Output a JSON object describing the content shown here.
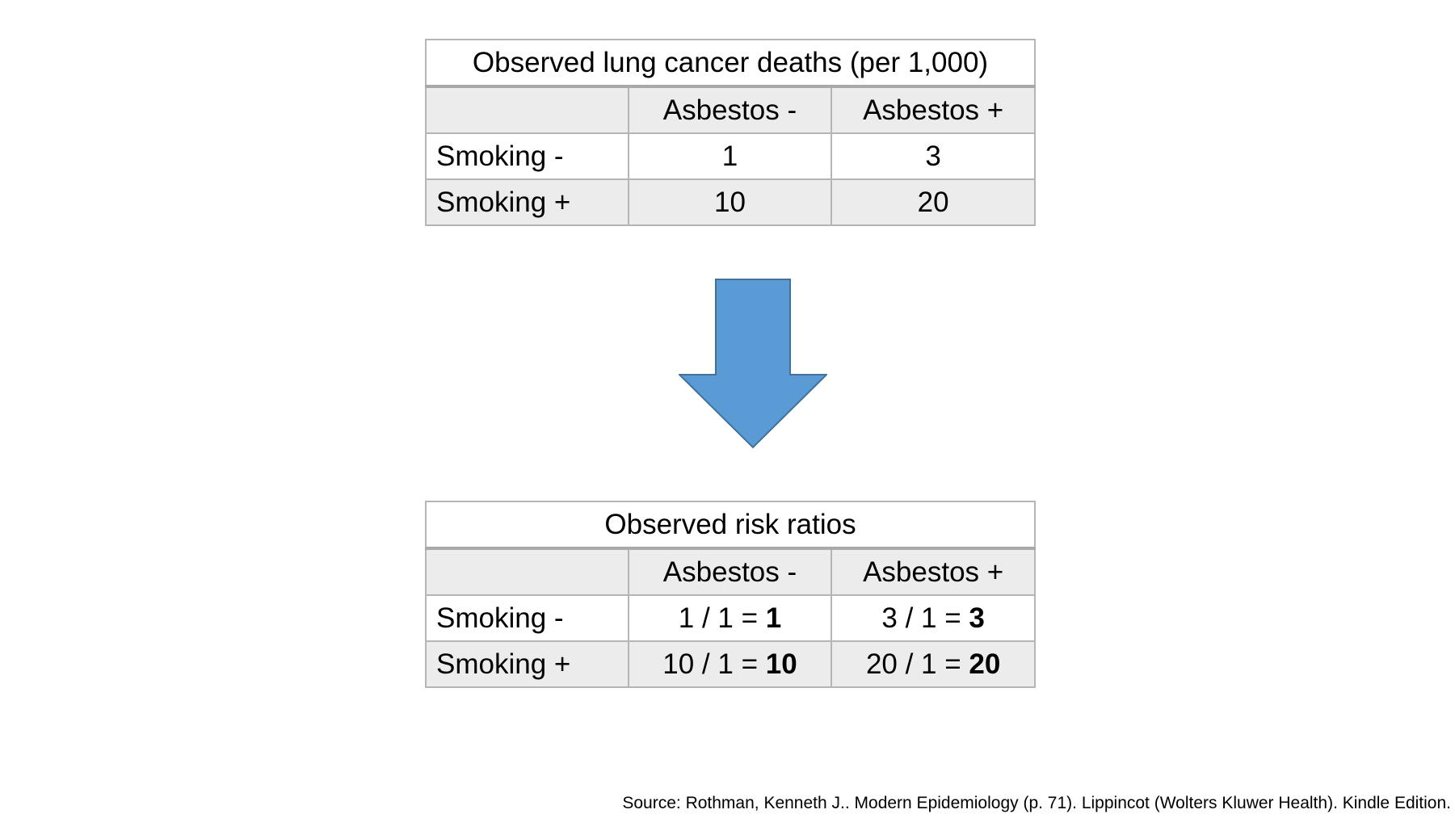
{
  "table_top": {
    "title": "Observed lung cancer deaths (per 1,000)",
    "col_headers": [
      "Asbestos -",
      "Asbestos +"
    ],
    "rows": [
      {
        "label": "Smoking -",
        "values": [
          "1",
          "3"
        ]
      },
      {
        "label": "Smoking +",
        "values": [
          "10",
          "20"
        ]
      }
    ]
  },
  "table_bottom": {
    "title": "Observed risk ratios",
    "col_headers": [
      "Asbestos -",
      "Asbestos +"
    ],
    "rows": [
      {
        "label": "Smoking -",
        "cells": [
          {
            "expr": "1 / 1 = ",
            "result": "1"
          },
          {
            "expr": "3 / 1 = ",
            "result": "3"
          }
        ]
      },
      {
        "label": "Smoking +",
        "cells": [
          {
            "expr": "10 / 1 = ",
            "result": "10"
          },
          {
            "expr": "20 / 1 = ",
            "result": "20"
          }
        ]
      }
    ]
  },
  "arrow": {
    "icon": "down-arrow-icon",
    "fill": "#5B9BD5",
    "stroke": "#41719C"
  },
  "source": "Source: Rothman, Kenneth J.. Modern Epidemiology (p. 71). Lippincot (Wolters Kluwer Health). Kindle Edition."
}
